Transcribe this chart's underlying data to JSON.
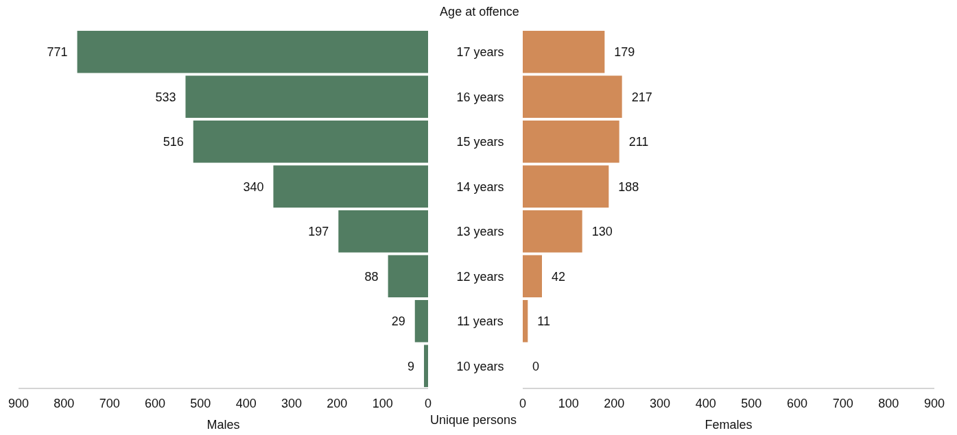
{
  "chart_data": [
    {
      "type": "bar",
      "orientation": "horizontal",
      "ylabel": "Age at offence",
      "xlabel": "Males",
      "categories": [
        "17 years",
        "16 years",
        "15 years",
        "14 years",
        "13 years",
        "12 years",
        "11 years",
        "10 years"
      ],
      "series": [
        {
          "color": "#527d62",
          "values": [
            771,
            533,
            516,
            340,
            197,
            88,
            29,
            9
          ]
        }
      ],
      "xlim": [
        900,
        0
      ],
      "xticks": [
        900,
        800,
        700,
        600,
        500,
        400,
        300,
        200,
        100,
        0
      ],
      "data_labels": true,
      "annotations": [
        "Unique persons"
      ]
    },
    {
      "type": "bar",
      "orientation": "horizontal",
      "xlabel": "Females",
      "categories": [
        null,
        null,
        null,
        null,
        null,
        null,
        null,
        null
      ],
      "series": [
        {
          "color": "#d18b58",
          "values": [
            179,
            217,
            211,
            188,
            130,
            42,
            11,
            0
          ]
        }
      ],
      "xlim": [
        0,
        900
      ],
      "xticks": [
        0,
        100,
        200,
        300,
        400,
        500,
        600,
        700,
        800,
        900
      ],
      "data_labels": true,
      "tick_labels": "x"
    }
  ]
}
